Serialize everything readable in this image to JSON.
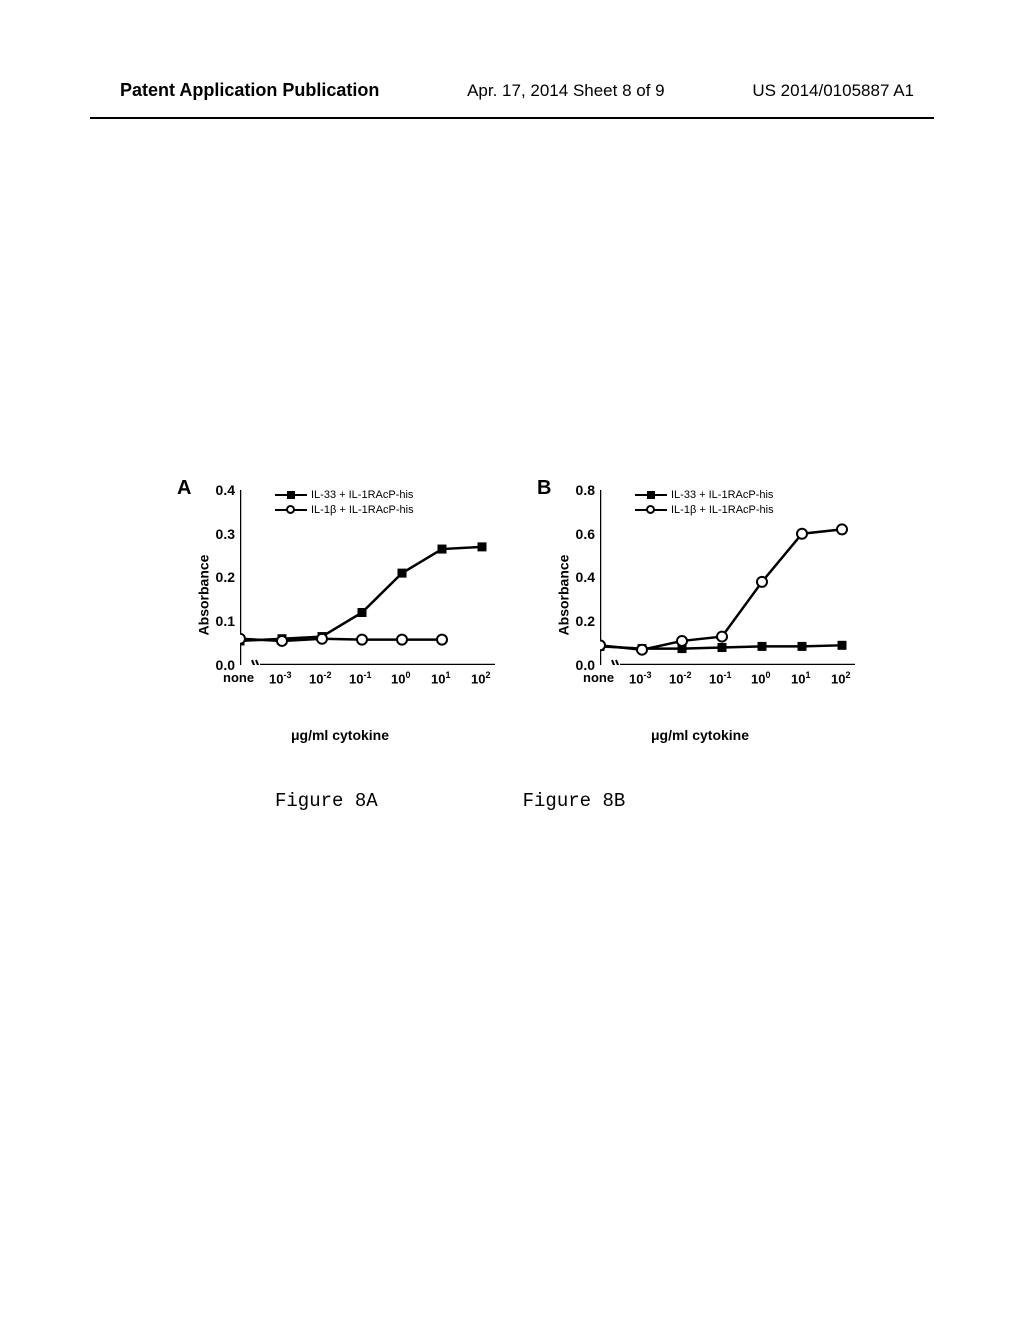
{
  "header": {
    "left": "Patent Application Publication",
    "center": "Apr. 17, 2014  Sheet 8 of 9",
    "right": "US 2014/0105887 A1"
  },
  "captions": {
    "a": "Figure 8A",
    "b": "Figure 8B"
  },
  "chartA": {
    "type": "line",
    "panel_label": "A",
    "y_label": "Absorbance",
    "x_label": "μg/ml cytokine",
    "ylim": [
      0.0,
      0.4
    ],
    "ytick_step": 0.1,
    "y_ticks": [
      0.0,
      0.1,
      0.2,
      0.3,
      0.4
    ],
    "y_tick_labels": [
      "0.0",
      "0.1",
      "0.2",
      "0.3",
      "0.4"
    ],
    "x_ticks_display": [
      "none",
      "10⁻³",
      "10⁻²",
      "10⁻¹",
      "10⁰",
      "10¹",
      "10²"
    ],
    "x_positions": [
      0,
      1,
      2,
      3,
      4,
      5,
      6
    ],
    "legend": {
      "series1": "IL-33 + IL-1RAcP-his",
      "series2": "IL-1β + IL-1RAcP-his"
    },
    "series": {
      "il33": {
        "marker": "square_filled",
        "color": "#000000",
        "line_width": 2.5,
        "x": [
          0,
          1,
          2,
          3,
          4,
          5,
          6
        ],
        "y": [
          0.055,
          0.06,
          0.065,
          0.12,
          0.21,
          0.265,
          0.27
        ]
      },
      "il1b": {
        "marker": "circle_open",
        "color": "#000000",
        "line_width": 2.5,
        "x": [
          0,
          1,
          2,
          3,
          4,
          5
        ],
        "y": [
          0.06,
          0.055,
          0.06,
          0.058,
          0.058,
          0.058
        ]
      }
    },
    "background_color": "#ffffff",
    "axis_color": "#000000",
    "font_size_labels": 14,
    "font_size_ticks": 13,
    "font_size_legend": 11
  },
  "chartB": {
    "type": "line",
    "panel_label": "B",
    "y_label": "Absorbance",
    "x_label": "μg/ml cytokine",
    "ylim": [
      0.0,
      0.8
    ],
    "ytick_step": 0.2,
    "y_ticks": [
      0.0,
      0.2,
      0.4,
      0.6,
      0.8
    ],
    "y_tick_labels": [
      "0.0",
      "0.2",
      "0.4",
      "0.6",
      "0.8"
    ],
    "x_ticks_display": [
      "none",
      "10⁻³",
      "10⁻²",
      "10⁻¹",
      "10⁰",
      "10¹",
      "10²"
    ],
    "x_positions": [
      0,
      1,
      2,
      3,
      4,
      5,
      6
    ],
    "legend": {
      "series1": "IL-33 + IL-1RAcP-his",
      "series2": "IL-1β + IL-1RAcP-his"
    },
    "series": {
      "il33": {
        "marker": "square_filled",
        "color": "#000000",
        "line_width": 2.5,
        "x": [
          0,
          1,
          2,
          3,
          4,
          5,
          6
        ],
        "y": [
          0.085,
          0.075,
          0.075,
          0.08,
          0.085,
          0.085,
          0.09
        ]
      },
      "il1b": {
        "marker": "circle_open",
        "color": "#000000",
        "line_width": 2.5,
        "x": [
          0,
          1,
          2,
          3,
          4,
          5,
          6
        ],
        "y": [
          0.09,
          0.07,
          0.11,
          0.13,
          0.38,
          0.6,
          0.62
        ]
      }
    },
    "background_color": "#ffffff",
    "axis_color": "#000000",
    "font_size_labels": 14,
    "font_size_ticks": 13,
    "font_size_legend": 11
  }
}
